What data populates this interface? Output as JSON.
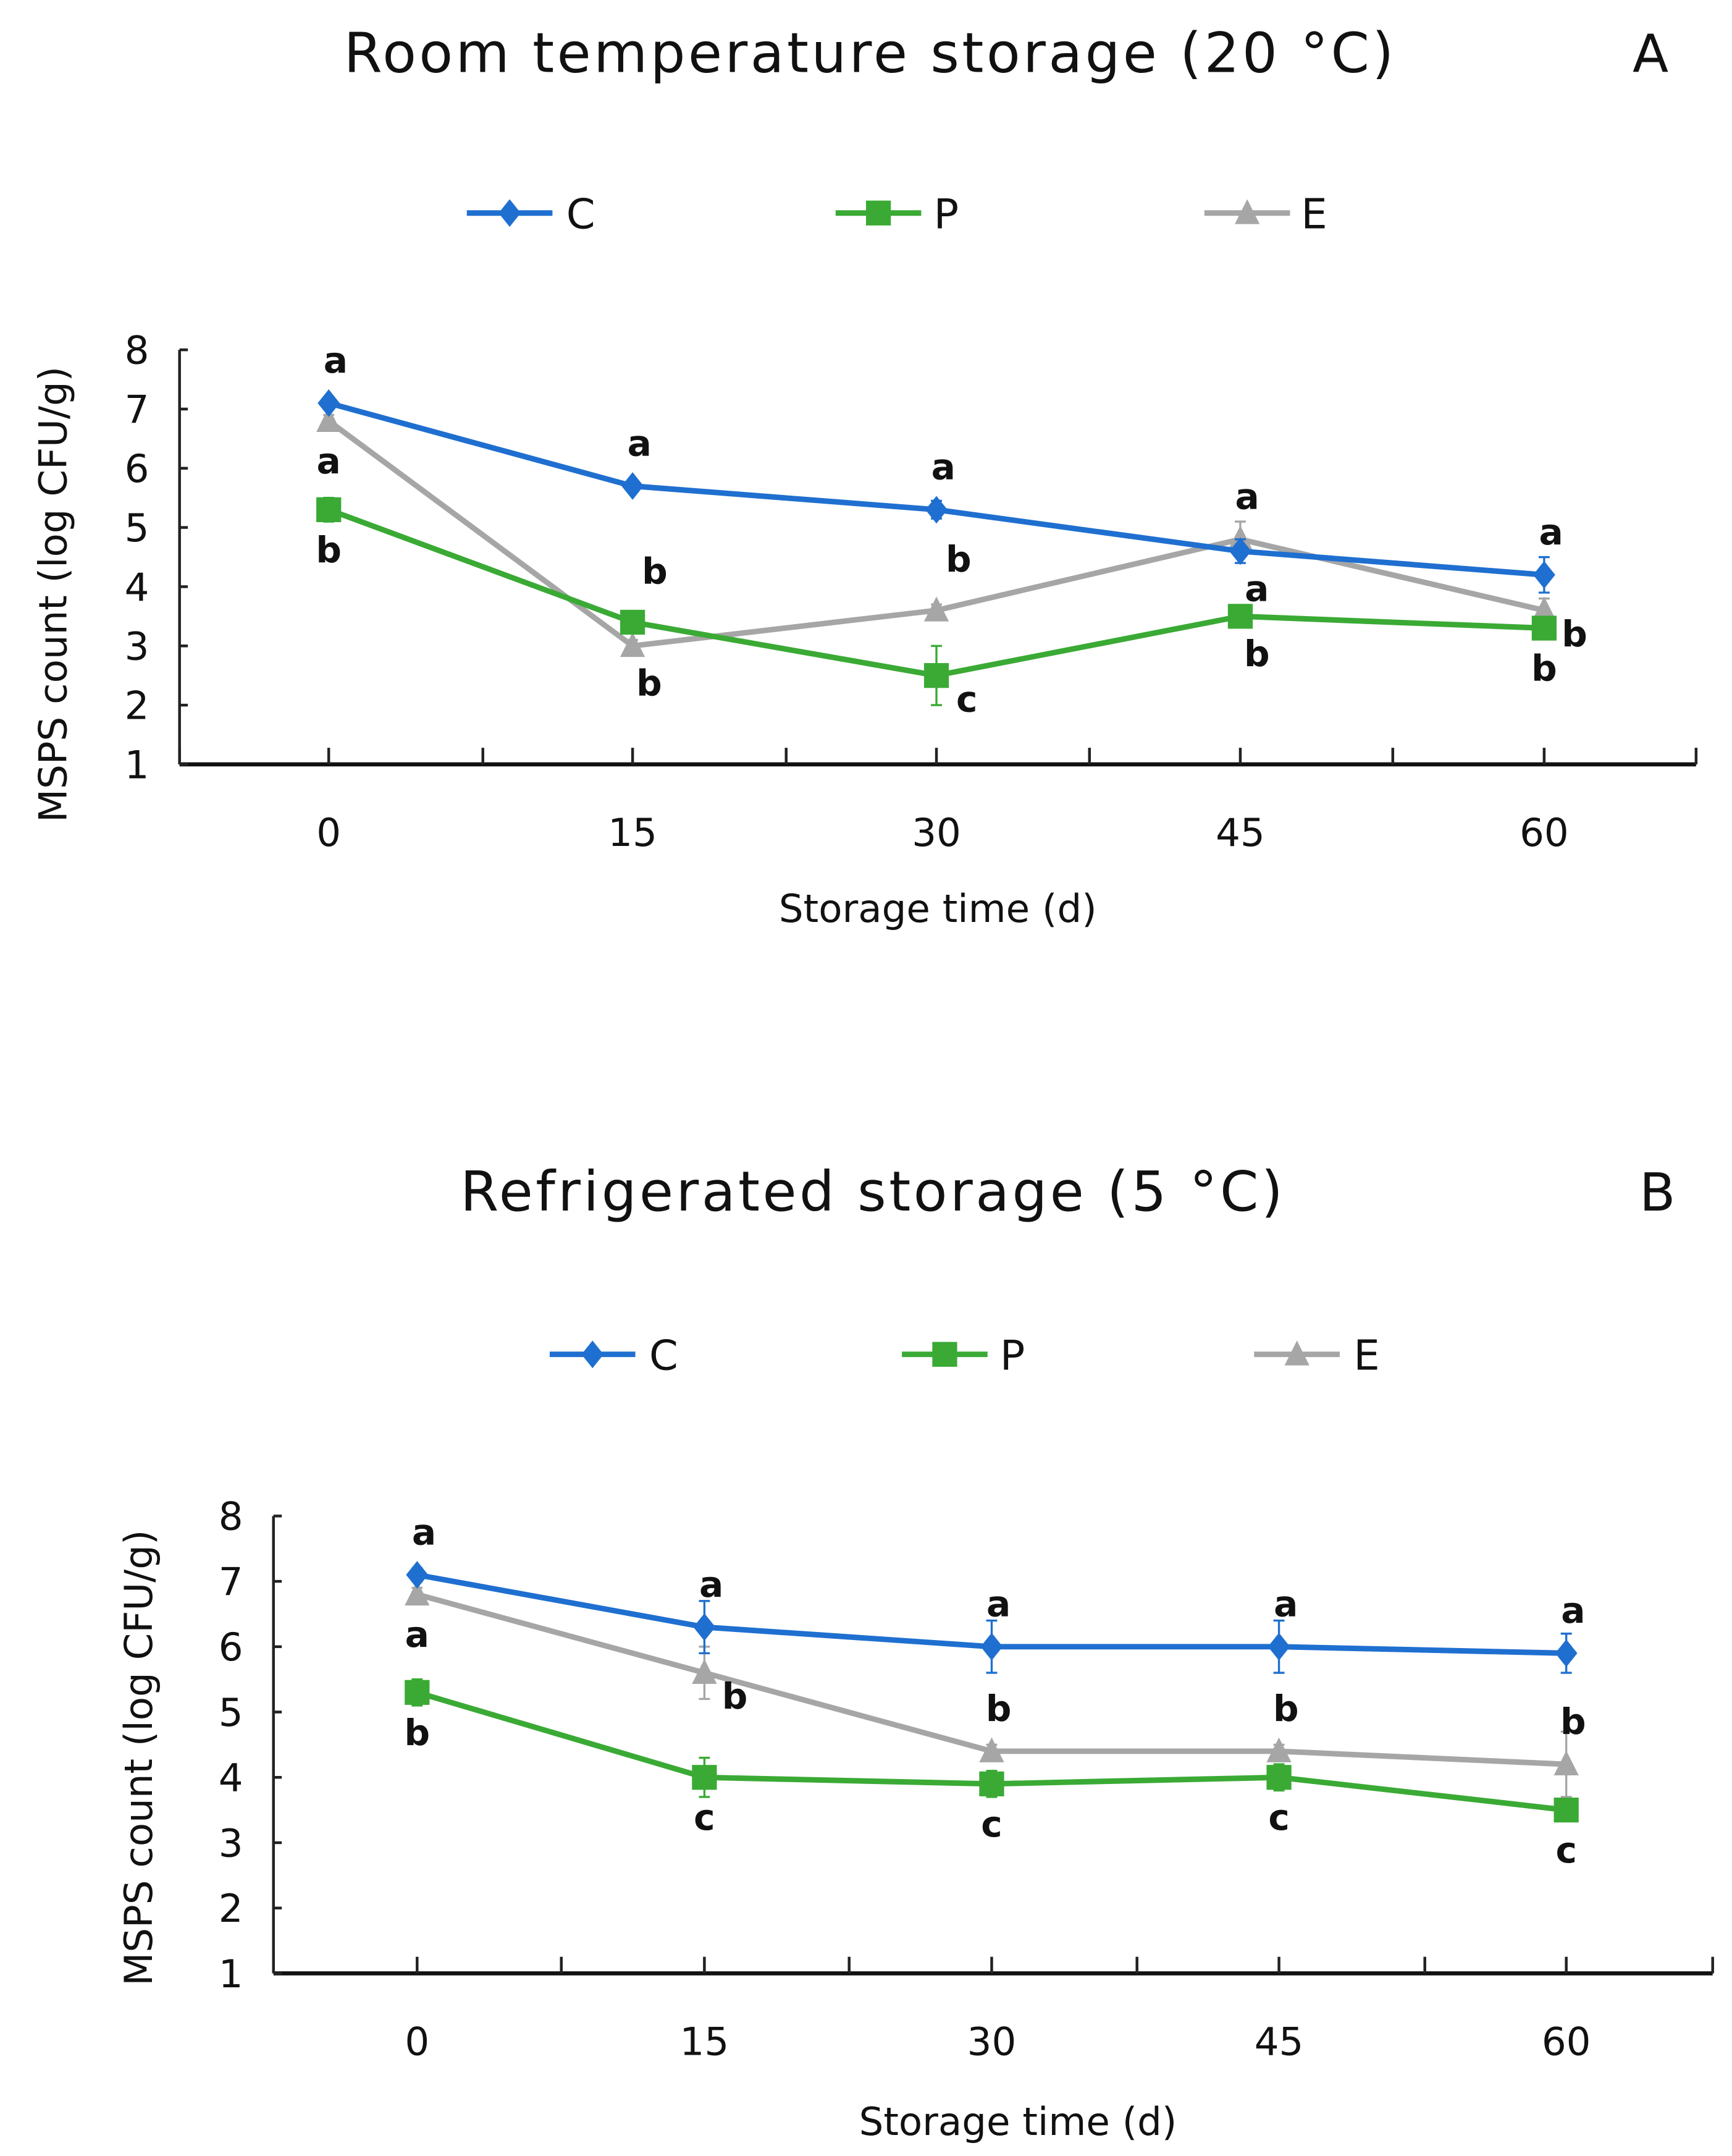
{
  "chart_data": [
    {
      "type": "line",
      "title": "Room temperature storage (20 °C)",
      "panel_label": "A",
      "xlabel": "Storage time (d)",
      "ylabel": "MSPS count (log CFU/g)",
      "x": [
        0,
        15,
        30,
        45,
        60
      ],
      "x_tick_labels": [
        "0",
        "15",
        "30",
        "45",
        "60"
      ],
      "ylim": [
        1,
        8
      ],
      "y_ticks": [
        "1",
        "2",
        "3",
        "4",
        "5",
        "6",
        "7",
        "8"
      ],
      "legend_position": "top",
      "series": [
        {
          "name": "C",
          "color": "#1f6fd0",
          "marker": "diamond",
          "values": [
            7.1,
            5.7,
            5.3,
            4.6,
            4.2
          ],
          "errors": [
            0.1,
            0.1,
            0.15,
            0.2,
            0.3
          ]
        },
        {
          "name": "P",
          "color": "#3aaa35",
          "marker": "square",
          "values": [
            5.3,
            3.4,
            2.5,
            3.5,
            3.3
          ],
          "errors": [
            0.2,
            0.05,
            0.5,
            0.1,
            0.1
          ]
        },
        {
          "name": "E",
          "color": "#a6a6a6",
          "marker": "triangle",
          "values": [
            6.8,
            3.0,
            3.6,
            4.8,
            3.6
          ],
          "errors": [
            0.1,
            0.1,
            0.1,
            0.3,
            0.2
          ]
        }
      ],
      "annotations": [
        {
          "series": 0,
          "i": 0,
          "text": "a",
          "pos": "above"
        },
        {
          "series": 2,
          "i": 0,
          "text": "a",
          "pos": "below"
        },
        {
          "series": 1,
          "i": 0,
          "text": "b",
          "pos": "below"
        },
        {
          "series": 0,
          "i": 1,
          "text": "a",
          "pos": "above"
        },
        {
          "series": 1,
          "i": 1,
          "text": "b",
          "pos": "aboveright"
        },
        {
          "series": 2,
          "i": 1,
          "text": "b",
          "pos": "belowright"
        },
        {
          "series": 0,
          "i": 2,
          "text": "a",
          "pos": "above"
        },
        {
          "series": 2,
          "i": 2,
          "text": "b",
          "pos": "aboveright"
        },
        {
          "series": 1,
          "i": 2,
          "text": "c",
          "pos": "right"
        },
        {
          "series": 2,
          "i": 3,
          "text": "a",
          "pos": "above"
        },
        {
          "series": 0,
          "i": 3,
          "text": "a",
          "pos": "belowright"
        },
        {
          "series": 1,
          "i": 3,
          "text": "b",
          "pos": "belowright"
        },
        {
          "series": 0,
          "i": 4,
          "text": "a",
          "pos": "above"
        },
        {
          "series": 2,
          "i": 4,
          "text": "b",
          "pos": "right"
        },
        {
          "series": 1,
          "i": 4,
          "text": "b",
          "pos": "below"
        }
      ]
    },
    {
      "type": "line",
      "title": "Refrigerated storage (5 °C)",
      "panel_label": "B",
      "xlabel": "Storage time (d)",
      "ylabel": "MSPS count (log CFU/g)",
      "x": [
        0,
        15,
        30,
        45,
        60
      ],
      "x_tick_labels": [
        "0",
        "15",
        "30",
        "45",
        "60"
      ],
      "ylim": [
        1,
        8
      ],
      "y_ticks": [
        "1",
        "2",
        "3",
        "4",
        "5",
        "6",
        "7",
        "8"
      ],
      "legend_position": "top",
      "series": [
        {
          "name": "C",
          "color": "#1f6fd0",
          "marker": "diamond",
          "values": [
            7.1,
            6.3,
            6.0,
            6.0,
            5.9
          ],
          "errors": [
            0.1,
            0.4,
            0.4,
            0.4,
            0.3
          ]
        },
        {
          "name": "P",
          "color": "#3aaa35",
          "marker": "square",
          "values": [
            5.3,
            4.0,
            3.9,
            4.0,
            3.5
          ],
          "errors": [
            0.2,
            0.3,
            0.2,
            0.2,
            0.1
          ]
        },
        {
          "name": "E",
          "color": "#a6a6a6",
          "marker": "triangle",
          "values": [
            6.8,
            5.6,
            4.4,
            4.4,
            4.2
          ],
          "errors": [
            0.1,
            0.4,
            0.1,
            0.1,
            0.5
          ]
        }
      ],
      "annotations": [
        {
          "series": 0,
          "i": 0,
          "text": "a",
          "pos": "above"
        },
        {
          "series": 2,
          "i": 0,
          "text": "a",
          "pos": "below"
        },
        {
          "series": 1,
          "i": 0,
          "text": "b",
          "pos": "below"
        },
        {
          "series": 0,
          "i": 1,
          "text": "a",
          "pos": "above"
        },
        {
          "series": 2,
          "i": 1,
          "text": "b",
          "pos": "right"
        },
        {
          "series": 1,
          "i": 1,
          "text": "c",
          "pos": "below"
        },
        {
          "series": 0,
          "i": 2,
          "text": "a",
          "pos": "above"
        },
        {
          "series": 2,
          "i": 2,
          "text": "b",
          "pos": "above"
        },
        {
          "series": 1,
          "i": 2,
          "text": "c",
          "pos": "below"
        },
        {
          "series": 0,
          "i": 3,
          "text": "a",
          "pos": "above"
        },
        {
          "series": 2,
          "i": 3,
          "text": "b",
          "pos": "above"
        },
        {
          "series": 1,
          "i": 3,
          "text": "c",
          "pos": "below"
        },
        {
          "series": 0,
          "i": 4,
          "text": "a",
          "pos": "above"
        },
        {
          "series": 2,
          "i": 4,
          "text": "b",
          "pos": "above"
        },
        {
          "series": 1,
          "i": 4,
          "text": "c",
          "pos": "below"
        }
      ]
    }
  ]
}
